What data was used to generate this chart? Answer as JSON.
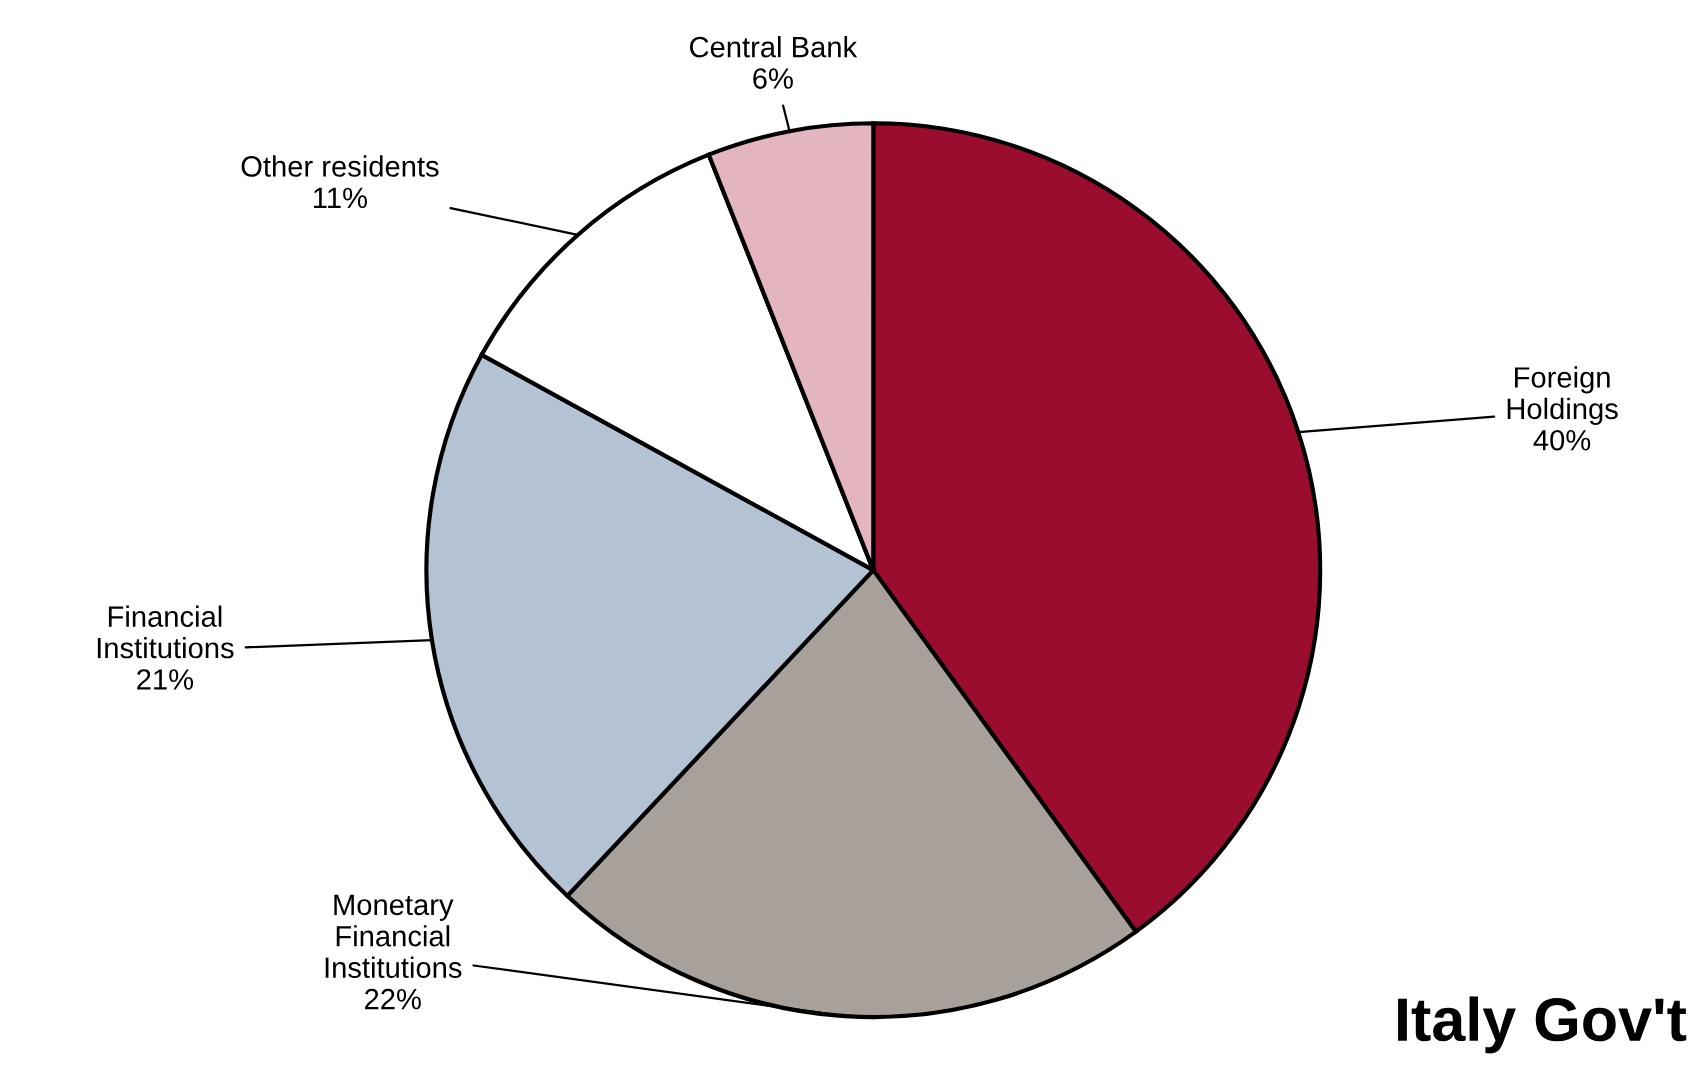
{
  "chart_data": {
    "type": "pie",
    "title": "Italy Gov't",
    "categories": [
      "Foreign\nHoldings",
      "Monetary\nFinancial\nInstitutions",
      "Financial\nInstitutions",
      "Other residents",
      "Central Bank"
    ],
    "values": [
      40,
      22,
      21,
      11,
      6
    ],
    "colors": [
      "#9b0d2e",
      "#a8a09a",
      "#b3c3d3",
      "#ffffff",
      "#e3b5bf"
    ],
    "value_labels": [
      "40%",
      "22%",
      "21%",
      "11%",
      "6%"
    ]
  }
}
